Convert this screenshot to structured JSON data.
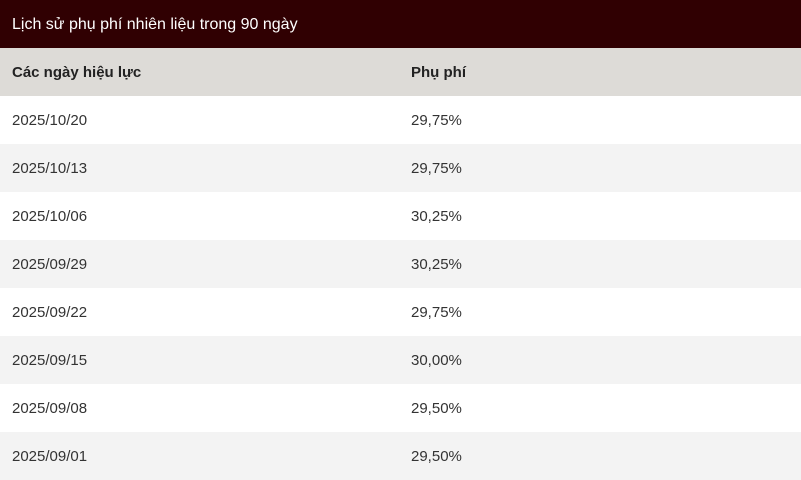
{
  "title": "Lịch sử phụ phí nhiên liệu trong 90 ngày",
  "columns": [
    "Các ngày hiệu lực",
    "Phụ phí"
  ],
  "rows": [
    [
      "2025/10/20",
      "29,75%"
    ],
    [
      "2025/10/13",
      "29,75%"
    ],
    [
      "2025/10/06",
      "30,25%"
    ],
    [
      "2025/09/29",
      "30,25%"
    ],
    [
      "2025/09/22",
      "29,75%"
    ],
    [
      "2025/09/15",
      "30,00%"
    ],
    [
      "2025/09/08",
      "29,50%"
    ],
    [
      "2025/09/01",
      "29,50%"
    ]
  ],
  "colors": {
    "title_bg": "#300002",
    "header_bg": "#dddbd7",
    "alt_row_bg": "#f3f3f3"
  }
}
